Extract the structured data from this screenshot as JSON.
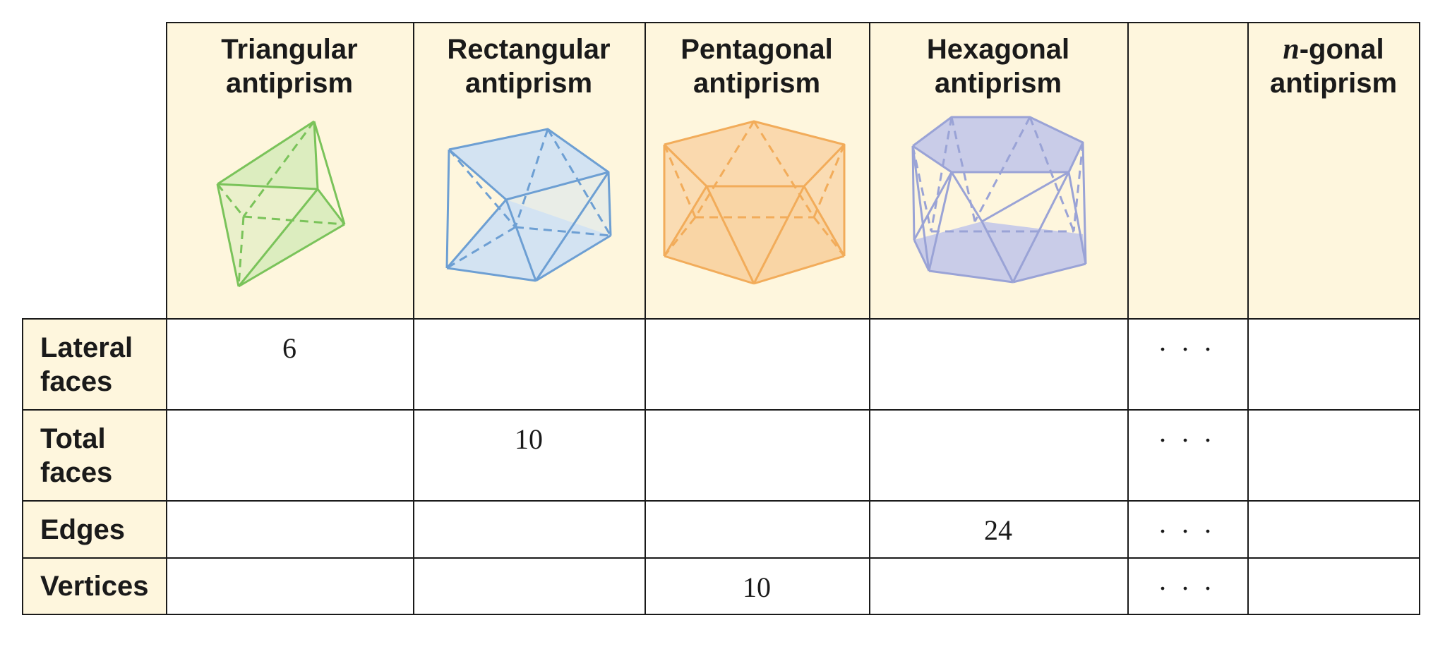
{
  "columns": [
    {
      "title_line1": "Triangular",
      "title_line2": "antiprism",
      "color": "#7ac35a",
      "fill": "#dcedbf"
    },
    {
      "title_line1": "Rectangular",
      "title_line2": "antiprism",
      "color": "#6d9fd3",
      "fill": "#d3e3f2"
    },
    {
      "title_line1": "Pentagonal",
      "title_line2": "antiprism",
      "color": "#f2ac5a",
      "fill": "#fad9ae"
    },
    {
      "title_line1": "Hexagonal",
      "title_line2": "antiprism",
      "color": "#9aa3d6",
      "fill": "#c9cce8"
    },
    {
      "title_line1": "",
      "title_line2": ""
    },
    {
      "title_italic": "n",
      "title_line1": "-gonal",
      "title_line2": "antiprism"
    }
  ],
  "rows": [
    {
      "label_line1": "Lateral",
      "label_line2": "faces",
      "values": [
        "6",
        "",
        "",
        "",
        "",
        ""
      ],
      "ellipsis": ". . ."
    },
    {
      "label_line1": "Total",
      "label_line2": "faces",
      "values": [
        "",
        "10",
        "",
        "",
        "",
        ""
      ],
      "ellipsis": ". . ."
    },
    {
      "label_line1": "Edges",
      "label_line2": "",
      "values": [
        "",
        "",
        "",
        "24",
        "",
        ""
      ],
      "ellipsis": ". . ."
    },
    {
      "label_line1": "Vertices",
      "label_line2": "",
      "values": [
        "",
        "",
        "10",
        "",
        "",
        ""
      ],
      "ellipsis": ". . ."
    }
  ]
}
